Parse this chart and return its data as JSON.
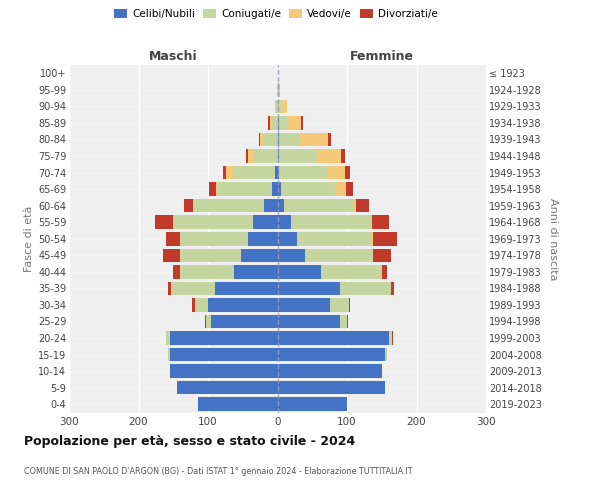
{
  "age_groups": [
    "0-4",
    "5-9",
    "10-14",
    "15-19",
    "20-24",
    "25-29",
    "30-34",
    "35-39",
    "40-44",
    "45-49",
    "50-54",
    "55-59",
    "60-64",
    "65-69",
    "70-74",
    "75-79",
    "80-84",
    "85-89",
    "90-94",
    "95-99",
    "100+"
  ],
  "birth_years": [
    "2019-2023",
    "2014-2018",
    "2009-2013",
    "2004-2008",
    "1999-2003",
    "1994-1998",
    "1989-1993",
    "1984-1988",
    "1979-1983",
    "1974-1978",
    "1969-1973",
    "1964-1968",
    "1959-1963",
    "1954-1958",
    "1949-1953",
    "1944-1948",
    "1939-1943",
    "1934-1938",
    "1929-1933",
    "1924-1928",
    "≤ 1923"
  ],
  "males": {
    "celibe": [
      115,
      145,
      155,
      155,
      155,
      95,
      100,
      90,
      62,
      52,
      42,
      35,
      20,
      8,
      4,
      0,
      0,
      0,
      0,
      0,
      0
    ],
    "coniugato": [
      0,
      0,
      0,
      2,
      5,
      8,
      18,
      63,
      78,
      88,
      98,
      115,
      100,
      78,
      60,
      35,
      20,
      8,
      3,
      1,
      0
    ],
    "vedovo": [
      0,
      0,
      0,
      0,
      0,
      0,
      0,
      0,
      0,
      0,
      0,
      1,
      2,
      3,
      10,
      8,
      5,
      3,
      1,
      0,
      0
    ],
    "divorziato": [
      0,
      0,
      0,
      0,
      0,
      1,
      5,
      5,
      10,
      25,
      20,
      25,
      12,
      10,
      5,
      3,
      2,
      2,
      0,
      0,
      0
    ]
  },
  "females": {
    "nubile": [
      100,
      155,
      150,
      155,
      160,
      90,
      75,
      90,
      62,
      40,
      28,
      20,
      10,
      5,
      2,
      2,
      2,
      2,
      0,
      0,
      0
    ],
    "coniugata": [
      0,
      0,
      0,
      2,
      5,
      10,
      28,
      73,
      88,
      98,
      108,
      115,
      98,
      78,
      70,
      55,
      30,
      12,
      5,
      2,
      0
    ],
    "vedova": [
      0,
      0,
      0,
      0,
      0,
      0,
      0,
      0,
      0,
      0,
      1,
      1,
      5,
      15,
      25,
      35,
      40,
      20,
      8,
      2,
      1
    ],
    "divorziata": [
      0,
      0,
      0,
      0,
      1,
      1,
      2,
      5,
      8,
      25,
      35,
      25,
      18,
      10,
      8,
      5,
      5,
      2,
      0,
      0,
      0
    ]
  },
  "colors": {
    "celibe": "#4472C4",
    "coniugato": "#C5D5A0",
    "vedovo": "#F5C87A",
    "divorziato": "#C0392B"
  },
  "legend_labels": [
    "Celibi/Nubili",
    "Coniugati/e",
    "Vedovi/e",
    "Divorziati/e"
  ],
  "title": "Popolazione per età, sesso e stato civile - 2024",
  "subtitle": "COMUNE DI SAN PAOLO D'ARGON (BG) - Dati ISTAT 1° gennaio 2024 - Elaborazione TUTTITALIA.IT",
  "header_left": "Maschi",
  "header_right": "Femmine",
  "ylabel_left": "Fasce di età",
  "ylabel_right": "Anni di nascita",
  "xlim": 300
}
